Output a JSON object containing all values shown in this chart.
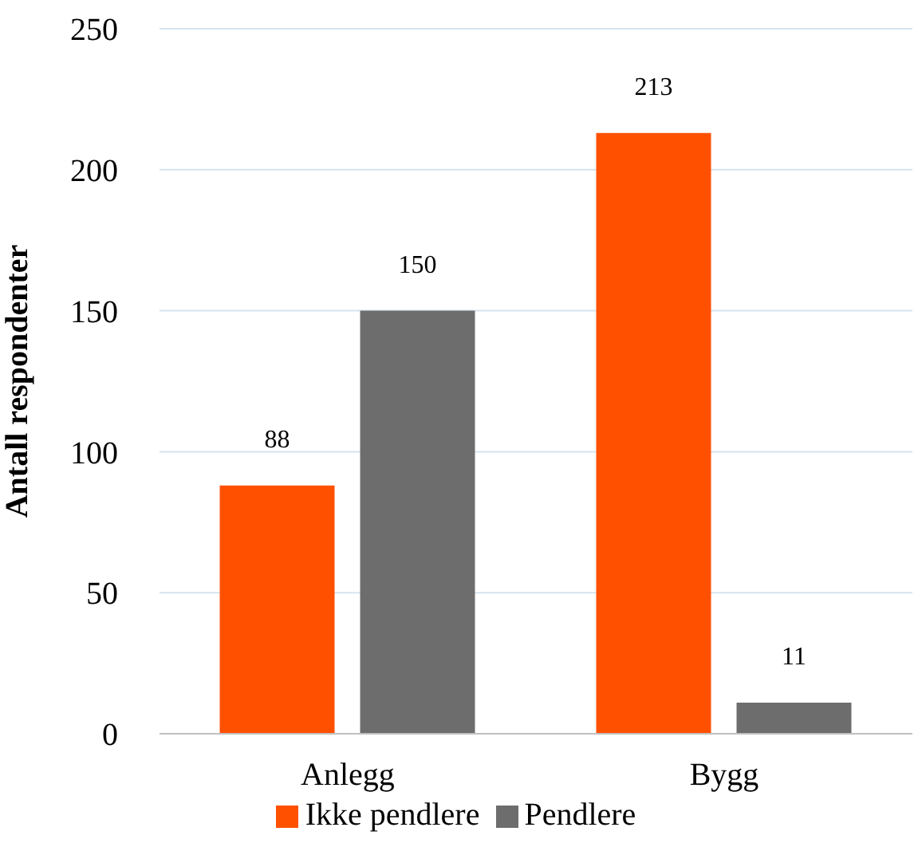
{
  "chart_data": {
    "type": "bar",
    "ylabel": "Antall respondenter",
    "categories": [
      "Anlegg",
      "Bygg"
    ],
    "series": [
      {
        "name": "Ikke pendlere",
        "color": "#ff5000",
        "values": [
          88,
          213
        ]
      },
      {
        "name": "Pendlere",
        "color": "#6d6d6d",
        "values": [
          150,
          11
        ]
      }
    ],
    "ylim": [
      0,
      250
    ],
    "yticks": [
      0,
      50,
      100,
      150,
      200,
      250
    ],
    "grid": "y",
    "legend": "bottom",
    "data_labels": true
  }
}
